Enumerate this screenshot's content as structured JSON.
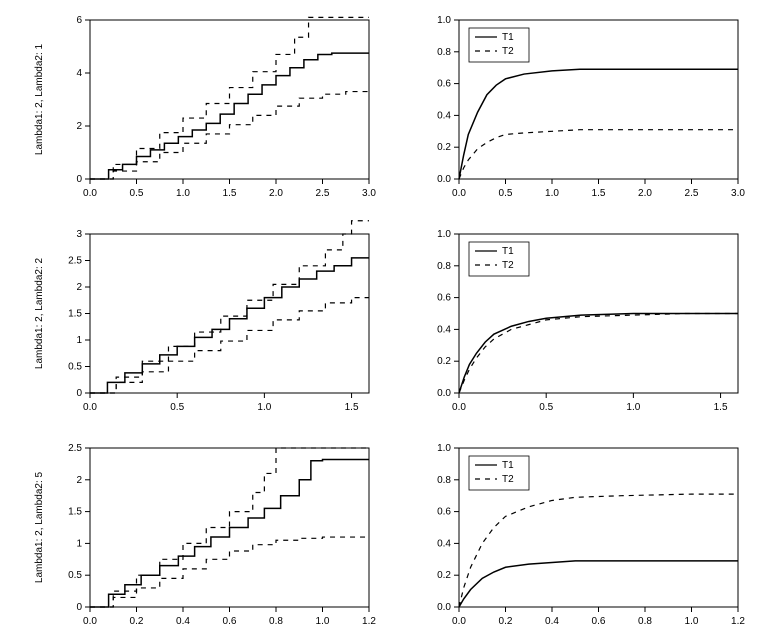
{
  "global": {
    "background_color": "#ffffff",
    "axis_color": "#000000",
    "text_color": "#000000",
    "line_color": "#000000",
    "font_family": "Arial",
    "axis_fontsize": 10,
    "ylabel_fontsize": 10,
    "legend_fontsize": 10,
    "line_width_main": 1.5,
    "line_width_ci": 1.2,
    "dash_pattern": "5 5",
    "panel_inner_w": 290,
    "panel_inner_h": 150,
    "rows": 3,
    "cols": 2
  },
  "legend": {
    "items": [
      "T1",
      "T2"
    ],
    "styles": [
      "solid",
      "dashed"
    ]
  },
  "panels": [
    {
      "id": "p11",
      "row": 0,
      "col": 0,
      "ylabel": "Lambda1: 2, Lambda2: 1",
      "xlim": [
        0,
        3
      ],
      "xticks": [
        0,
        0.5,
        1,
        1.5,
        2,
        2.5,
        3
      ],
      "ylim": [
        0,
        6
      ],
      "yticks": [
        0,
        2,
        4,
        6
      ],
      "legend": false,
      "series": [
        {
          "style": "solid",
          "step": true,
          "pts": [
            [
              0,
              0
            ],
            [
              0.2,
              0.35
            ],
            [
              0.35,
              0.55
            ],
            [
              0.5,
              0.85
            ],
            [
              0.65,
              1.1
            ],
            [
              0.8,
              1.35
            ],
            [
              0.95,
              1.6
            ],
            [
              1.1,
              1.85
            ],
            [
              1.25,
              2.1
            ],
            [
              1.4,
              2.45
            ],
            [
              1.55,
              2.85
            ],
            [
              1.7,
              3.2
            ],
            [
              1.85,
              3.55
            ],
            [
              2.0,
              3.9
            ],
            [
              2.15,
              4.2
            ],
            [
              2.3,
              4.5
            ],
            [
              2.45,
              4.7
            ],
            [
              2.6,
              4.75
            ],
            [
              3.0,
              4.75
            ]
          ]
        },
        {
          "style": "dashed",
          "step": true,
          "pts": [
            [
              0,
              0
            ],
            [
              0.25,
              0.55
            ],
            [
              0.5,
              1.15
            ],
            [
              0.75,
              1.75
            ],
            [
              1.0,
              2.3
            ],
            [
              1.25,
              2.85
            ],
            [
              1.5,
              3.45
            ],
            [
              1.75,
              4.05
            ],
            [
              2.0,
              4.7
            ],
            [
              2.2,
              5.35
            ],
            [
              2.35,
              6.1
            ],
            [
              3.0,
              6.1
            ]
          ]
        },
        {
          "style": "dashed",
          "step": true,
          "pts": [
            [
              0,
              0
            ],
            [
              0.25,
              0.3
            ],
            [
              0.5,
              0.65
            ],
            [
              0.75,
              1.0
            ],
            [
              1.0,
              1.35
            ],
            [
              1.25,
              1.7
            ],
            [
              1.5,
              2.05
            ],
            [
              1.75,
              2.4
            ],
            [
              2.0,
              2.75
            ],
            [
              2.25,
              3.05
            ],
            [
              2.5,
              3.2
            ],
            [
              2.75,
              3.3
            ],
            [
              3.0,
              3.3
            ]
          ]
        }
      ]
    },
    {
      "id": "p12",
      "row": 0,
      "col": 1,
      "ylabel": "",
      "xlim": [
        0,
        3
      ],
      "xticks": [
        0,
        0.5,
        1,
        1.5,
        2,
        2.5,
        3
      ],
      "ylim": [
        0,
        1
      ],
      "yticks": [
        0,
        0.2,
        0.4,
        0.6,
        0.8,
        1
      ],
      "legend": true,
      "series": [
        {
          "style": "solid",
          "step": false,
          "pts": [
            [
              0,
              0
            ],
            [
              0.05,
              0.15
            ],
            [
              0.1,
              0.28
            ],
            [
              0.2,
              0.42
            ],
            [
              0.3,
              0.53
            ],
            [
              0.4,
              0.59
            ],
            [
              0.5,
              0.63
            ],
            [
              0.7,
              0.66
            ],
            [
              1.0,
              0.68
            ],
            [
              1.3,
              0.69
            ],
            [
              2.0,
              0.69
            ],
            [
              3.0,
              0.69
            ]
          ]
        },
        {
          "style": "dashed",
          "step": false,
          "pts": [
            [
              0,
              0
            ],
            [
              0.05,
              0.07
            ],
            [
              0.1,
              0.12
            ],
            [
              0.2,
              0.19
            ],
            [
              0.3,
              0.23
            ],
            [
              0.4,
              0.26
            ],
            [
              0.5,
              0.28
            ],
            [
              0.7,
              0.29
            ],
            [
              1.0,
              0.3
            ],
            [
              1.3,
              0.31
            ],
            [
              2.0,
              0.31
            ],
            [
              3.0,
              0.31
            ]
          ]
        }
      ]
    },
    {
      "id": "p21",
      "row": 1,
      "col": 0,
      "ylabel": "Lambda1: 2, Lambda2: 2",
      "xlim": [
        0,
        1.6
      ],
      "xticks": [
        0,
        0.5,
        1,
        1.5
      ],
      "ylim": [
        0,
        3
      ],
      "yticks": [
        0,
        0.5,
        1,
        1.5,
        2,
        2.5,
        3
      ],
      "legend": false,
      "series": [
        {
          "style": "solid",
          "step": true,
          "pts": [
            [
              0,
              0
            ],
            [
              0.1,
              0.2
            ],
            [
              0.2,
              0.38
            ],
            [
              0.3,
              0.55
            ],
            [
              0.4,
              0.72
            ],
            [
              0.5,
              0.88
            ],
            [
              0.6,
              1.05
            ],
            [
              0.7,
              1.2
            ],
            [
              0.8,
              1.4
            ],
            [
              0.9,
              1.6
            ],
            [
              1.0,
              1.8
            ],
            [
              1.1,
              2.0
            ],
            [
              1.2,
              2.15
            ],
            [
              1.3,
              2.3
            ],
            [
              1.4,
              2.4
            ],
            [
              1.5,
              2.55
            ],
            [
              1.6,
              2.55
            ]
          ]
        },
        {
          "style": "dashed",
          "step": true,
          "pts": [
            [
              0,
              0
            ],
            [
              0.15,
              0.3
            ],
            [
              0.3,
              0.6
            ],
            [
              0.45,
              0.88
            ],
            [
              0.6,
              1.15
            ],
            [
              0.75,
              1.45
            ],
            [
              0.9,
              1.75
            ],
            [
              1.05,
              2.05
            ],
            [
              1.2,
              2.4
            ],
            [
              1.35,
              2.7
            ],
            [
              1.45,
              3.0
            ],
            [
              1.5,
              3.25
            ],
            [
              1.6,
              3.25
            ]
          ]
        },
        {
          "style": "dashed",
          "step": true,
          "pts": [
            [
              0,
              0
            ],
            [
              0.15,
              0.2
            ],
            [
              0.3,
              0.4
            ],
            [
              0.45,
              0.6
            ],
            [
              0.6,
              0.8
            ],
            [
              0.75,
              0.98
            ],
            [
              0.9,
              1.18
            ],
            [
              1.05,
              1.38
            ],
            [
              1.2,
              1.55
            ],
            [
              1.35,
              1.7
            ],
            [
              1.5,
              1.8
            ],
            [
              1.6,
              1.8
            ]
          ]
        }
      ]
    },
    {
      "id": "p22",
      "row": 1,
      "col": 1,
      "ylabel": "",
      "xlim": [
        0,
        1.6
      ],
      "xticks": [
        0,
        0.5,
        1,
        1.5
      ],
      "ylim": [
        0,
        1
      ],
      "yticks": [
        0,
        0.2,
        0.4,
        0.6,
        0.8,
        1
      ],
      "legend": true,
      "series": [
        {
          "style": "solid",
          "step": false,
          "pts": [
            [
              0,
              0
            ],
            [
              0.03,
              0.1
            ],
            [
              0.06,
              0.18
            ],
            [
              0.1,
              0.25
            ],
            [
              0.15,
              0.32
            ],
            [
              0.2,
              0.37
            ],
            [
              0.3,
              0.42
            ],
            [
              0.4,
              0.45
            ],
            [
              0.5,
              0.47
            ],
            [
              0.7,
              0.49
            ],
            [
              1.0,
              0.5
            ],
            [
              1.3,
              0.5
            ],
            [
              1.6,
              0.5
            ]
          ]
        },
        {
          "style": "dashed",
          "step": false,
          "pts": [
            [
              0,
              0
            ],
            [
              0.03,
              0.08
            ],
            [
              0.06,
              0.15
            ],
            [
              0.1,
              0.22
            ],
            [
              0.15,
              0.29
            ],
            [
              0.2,
              0.34
            ],
            [
              0.3,
              0.4
            ],
            [
              0.4,
              0.43
            ],
            [
              0.5,
              0.46
            ],
            [
              0.7,
              0.48
            ],
            [
              1.0,
              0.49
            ],
            [
              1.3,
              0.5
            ],
            [
              1.6,
              0.5
            ]
          ]
        }
      ]
    },
    {
      "id": "p31",
      "row": 2,
      "col": 0,
      "ylabel": "Lambda1: 2, Lambda2: 5",
      "xlim": [
        0,
        1.2
      ],
      "xticks": [
        0,
        0.2,
        0.4,
        0.6,
        0.8,
        1,
        1.2
      ],
      "ylim": [
        0,
        2.5
      ],
      "yticks": [
        0,
        0.5,
        1,
        1.5,
        2,
        2.5
      ],
      "legend": false,
      "series": [
        {
          "style": "solid",
          "step": true,
          "pts": [
            [
              0,
              0
            ],
            [
              0.08,
              0.2
            ],
            [
              0.15,
              0.35
            ],
            [
              0.22,
              0.5
            ],
            [
              0.3,
              0.65
            ],
            [
              0.38,
              0.8
            ],
            [
              0.45,
              0.95
            ],
            [
              0.52,
              1.1
            ],
            [
              0.6,
              1.25
            ],
            [
              0.68,
              1.4
            ],
            [
              0.75,
              1.55
            ],
            [
              0.82,
              1.75
            ],
            [
              0.9,
              2.0
            ],
            [
              0.95,
              2.3
            ],
            [
              1.0,
              2.32
            ],
            [
              1.2,
              2.32
            ]
          ]
        },
        {
          "style": "dashed",
          "step": true,
          "pts": [
            [
              0,
              0
            ],
            [
              0.1,
              0.25
            ],
            [
              0.2,
              0.5
            ],
            [
              0.3,
              0.75
            ],
            [
              0.4,
              1.0
            ],
            [
              0.5,
              1.25
            ],
            [
              0.6,
              1.5
            ],
            [
              0.7,
              1.8
            ],
            [
              0.75,
              2.1
            ],
            [
              0.8,
              2.5
            ],
            [
              1.2,
              2.5
            ]
          ]
        },
        {
          "style": "dashed",
          "step": true,
          "pts": [
            [
              0,
              0
            ],
            [
              0.1,
              0.15
            ],
            [
              0.2,
              0.3
            ],
            [
              0.3,
              0.45
            ],
            [
              0.4,
              0.6
            ],
            [
              0.5,
              0.75
            ],
            [
              0.6,
              0.88
            ],
            [
              0.7,
              0.98
            ],
            [
              0.8,
              1.05
            ],
            [
              0.9,
              1.08
            ],
            [
              1.0,
              1.1
            ],
            [
              1.2,
              1.1
            ]
          ]
        }
      ]
    },
    {
      "id": "p32",
      "row": 2,
      "col": 1,
      "ylabel": "",
      "xlim": [
        0,
        1.2
      ],
      "xticks": [
        0,
        0.2,
        0.4,
        0.6,
        0.8,
        1,
        1.2
      ],
      "ylim": [
        0,
        1
      ],
      "yticks": [
        0,
        0.2,
        0.4,
        0.6,
        0.8,
        1
      ],
      "legend": true,
      "series": [
        {
          "style": "solid",
          "step": false,
          "pts": [
            [
              0,
              0
            ],
            [
              0.02,
              0.05
            ],
            [
              0.05,
              0.11
            ],
            [
              0.1,
              0.18
            ],
            [
              0.15,
              0.22
            ],
            [
              0.2,
              0.25
            ],
            [
              0.3,
              0.27
            ],
            [
              0.4,
              0.28
            ],
            [
              0.5,
              0.29
            ],
            [
              0.7,
              0.29
            ],
            [
              1.0,
              0.29
            ],
            [
              1.2,
              0.29
            ]
          ]
        },
        {
          "style": "dashed",
          "step": false,
          "pts": [
            [
              0,
              0
            ],
            [
              0.02,
              0.12
            ],
            [
              0.05,
              0.25
            ],
            [
              0.1,
              0.4
            ],
            [
              0.15,
              0.5
            ],
            [
              0.2,
              0.57
            ],
            [
              0.3,
              0.63
            ],
            [
              0.4,
              0.67
            ],
            [
              0.5,
              0.69
            ],
            [
              0.7,
              0.7
            ],
            [
              1.0,
              0.71
            ],
            [
              1.2,
              0.71
            ]
          ]
        }
      ]
    }
  ]
}
